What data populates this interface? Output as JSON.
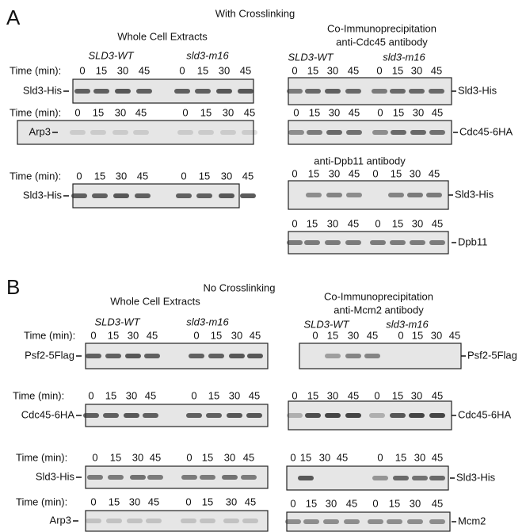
{
  "panels": [
    {
      "letter": "A",
      "condition": "With Crosslinking",
      "whole_cell_title": "Whole Cell Extracts",
      "coip_title": "Co-Immunoprecipitation",
      "coip_antibody": "anti-Cdc45 antibody",
      "second_antibody": "anti-Dpb11 antibody",
      "strains": [
        "SLD3-WT",
        "sld3-m16"
      ],
      "time_label": "Time (min):",
      "times": [
        0,
        15,
        30,
        45
      ],
      "left_blots": [
        "Sld3-His",
        "Arp3",
        "Sld3-His"
      ],
      "right_blots": [
        "Sld3-His",
        "Cdc45-6HA",
        "Sld3-His",
        "Dpb11"
      ]
    },
    {
      "letter": "B",
      "condition": "No Crosslinking",
      "whole_cell_title": "Whole Cell Extracts",
      "coip_title": "Co-Immunoprecipitation",
      "coip_antibody": "anti-Mcm2 antibody",
      "strains": [
        "SLD3-WT",
        "sld3-m16"
      ],
      "time_label": "Time (min):",
      "times": [
        0,
        15,
        30,
        45
      ],
      "left_blots": [
        "Psf2-5Flag",
        "Cdc45-6HA",
        "Sld3-His",
        "Arp3"
      ],
      "right_blots": [
        "Psf2-5Flag",
        "Cdc45-6HA",
        "Sld3-His",
        "Mcm2"
      ]
    }
  ]
}
